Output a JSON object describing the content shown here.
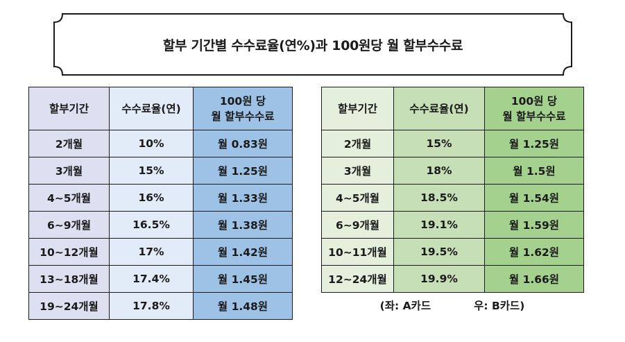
{
  "title": "할부 기간별 수수료율(연%)과  100원당 월 할부수수료",
  "table_a": {
    "headers": [
      "할부기간",
      "수수료율(연)",
      "100원 당",
      "월 할부수수료"
    ],
    "rows": [
      [
        "2개월",
        "10%",
        "월 0.83원"
      ],
      [
        "3개월",
        "15%",
        "월 1.25원"
      ],
      [
        "4~5개월",
        "16%",
        "월 1.33원"
      ],
      [
        "6~9개월",
        "16.5%",
        "월 1.38원"
      ],
      [
        "10~12개월",
        "17%",
        "월 1.42원"
      ],
      [
        "13~18개월",
        "17.4%",
        "월 1.45원"
      ],
      [
        "19~24개월",
        "17.8%",
        "월 1.48원"
      ]
    ]
  },
  "table_b": {
    "headers": [
      "할부기간",
      "수수료율(연)",
      "100원 당",
      "월 할부수수료"
    ],
    "rows": [
      [
        "2개월",
        "15%",
        "월 1.25원"
      ],
      [
        "3개월",
        "18%",
        "월 1.5원"
      ],
      [
        "4~5개월",
        "18.5%",
        "월 1.54원"
      ],
      [
        "6~9개월",
        "19.1%",
        "월 1.59원"
      ],
      [
        "10~11개월",
        "19.5%",
        "월 1.62원"
      ],
      [
        "12~24개월",
        "19.9%",
        "월 1.66원"
      ]
    ]
  },
  "caption": {
    "left": "(좌: A카드",
    "right": "우: B카드)"
  }
}
